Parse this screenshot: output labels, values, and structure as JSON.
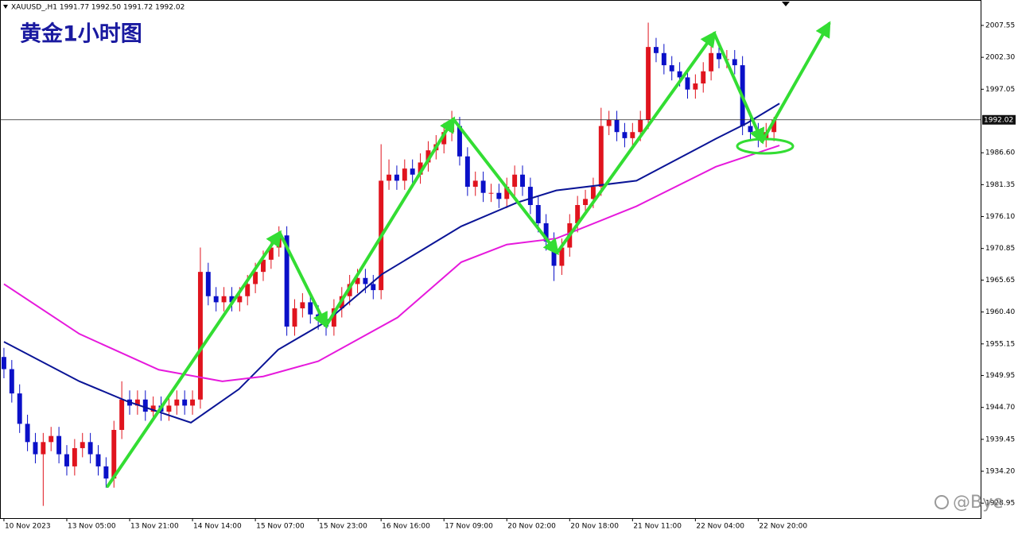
{
  "header": "XAUUSD_,H1  1991.77 1992.50 1991.72 1992.02",
  "watermark": "@Bye",
  "chart_data": {
    "type": "candlestick",
    "title": "黄金1小时图",
    "up_color": "#e0141e",
    "down_color": "#0a10c8",
    "open": [
      1953,
      1951,
      1947,
      1942,
      1939,
      1937,
      1939,
      1940,
      1937,
      1935,
      1938,
      1939,
      1937,
      1935,
      1933,
      1941,
      1946,
      1945,
      1946,
      1944,
      1945,
      1944,
      1945,
      1946,
      1945,
      1946,
      1967,
      1963,
      1962,
      1963,
      1962,
      1963,
      1965,
      1967,
      1969,
      1971,
      1973,
      1958,
      1961,
      1962,
      1960,
      1959,
      1958,
      1961,
      1963,
      1965,
      1966,
      1965,
      1964,
      1982,
      1983,
      1982,
      1984,
      1983,
      1985,
      1987,
      1988,
      1990,
      1991,
      1986,
      1981,
      1982,
      1980,
      1980,
      1979,
      1981,
      1983,
      1981,
      1978,
      1975,
      1972,
      1968,
      1971,
      1975,
      1978,
      1979,
      1981,
      1991,
      1992,
      1990,
      1989,
      1990,
      1992,
      2004,
      2003,
      2001,
      2000,
      1999,
      1997,
      1998,
      2000,
      2003,
      2002,
      2002,
      2001,
      1991,
      1990,
      1989,
      1990
    ],
    "high": [
      1954.5,
      1952.5,
      1948.5,
      1943.5,
      1940.5,
      1940.5,
      1941.5,
      1941.5,
      1938.5,
      1939.5,
      1940.5,
      1940.5,
      1938.5,
      1936.5,
      1942.5,
      1949,
      1947.5,
      1947.5,
      1947.5,
      1946.5,
      1946.5,
      1946.5,
      1947.5,
      1947.5,
      1947.5,
      1971,
      1968.5,
      1964.5,
      1964.5,
      1964.5,
      1964.5,
      1966.5,
      1968.5,
      1970.5,
      1972.5,
      1974.5,
      1974.5,
      1962.5,
      1963.5,
      1963.5,
      1961.5,
      1960.5,
      1962.5,
      1964.5,
      1966.5,
      1967.5,
      1967.5,
      1966.5,
      1988,
      1985.5,
      1984.5,
      1985.5,
      1985.5,
      1986.5,
      1988.5,
      1989.5,
      1991.5,
      1993.5,
      1992.5,
      1987.5,
      1983.5,
      1983.5,
      1981.5,
      1981.5,
      1982.5,
      1984.5,
      1984.5,
      1982.5,
      1979.5,
      1976.5,
      1973.5,
      1972.5,
      1976.5,
      1979.5,
      1980.5,
      1982.5,
      1994,
      1993.5,
      1993.5,
      1991.5,
      1991.5,
      1993.5,
      2008,
      2005.5,
      2004.5,
      2002.5,
      2001.5,
      2000.5,
      1999.5,
      2001.5,
      2005.5,
      2004.5,
      2003.5,
      2003.5,
      2002.5,
      1992.5,
      1991.5,
      1991.5,
      1992.5
    ],
    "low": [
      1949.5,
      1945.5,
      1940.5,
      1937.5,
      1935.5,
      1928.5,
      1937.5,
      1935.5,
      1933.5,
      1933.5,
      1936.5,
      1935.5,
      1933.5,
      1931.5,
      1931.5,
      1939.5,
      1943.5,
      1943.5,
      1942.5,
      1942.5,
      1942.5,
      1942.5,
      1943.5,
      1943.5,
      1943.5,
      1944.5,
      1961.5,
      1960.5,
      1960.5,
      1960.5,
      1960.5,
      1961.5,
      1963.5,
      1965.5,
      1967.5,
      1969.5,
      1956.5,
      1956.5,
      1959.5,
      1958.5,
      1957.5,
      1956.5,
      1956.5,
      1959.5,
      1961.5,
      1963.5,
      1963.5,
      1962.5,
      1962.5,
      1980.5,
      1980.5,
      1980.5,
      1981.5,
      1981.5,
      1983.5,
      1985.5,
      1986.5,
      1988.5,
      1984.5,
      1979.5,
      1979.5,
      1978.5,
      1978.5,
      1977.5,
      1977.5,
      1979.5,
      1979.5,
      1976.5,
      1973.5,
      1970.5,
      1965.5,
      1966.5,
      1969.5,
      1973.5,
      1976.5,
      1977.5,
      1979.5,
      1989.5,
      1988.5,
      1987.5,
      1987.5,
      1988.5,
      1990.5,
      2001.5,
      1999.5,
      1998.5,
      1997.5,
      1995.5,
      1995.5,
      1996.5,
      1998.5,
      2000.5,
      2000.5,
      1999.5,
      1989.5,
      1988.5,
      1987.5,
      1987.5,
      1988.5
    ],
    "close": [
      1951,
      1947,
      1942,
      1939,
      1937,
      1939,
      1940,
      1937,
      1935,
      1938,
      1939,
      1937,
      1935,
      1933,
      1941,
      1946,
      1945,
      1946,
      1944,
      1945,
      1944,
      1945,
      1946,
      1945,
      1946,
      1967,
      1963,
      1962,
      1963,
      1962,
      1963,
      1965,
      1967,
      1969,
      1971,
      1973,
      1958,
      1961,
      1962,
      1960,
      1959,
      1958,
      1961,
      1963,
      1965,
      1966,
      1965,
      1964,
      1982,
      1983,
      1982,
      1984,
      1983,
      1985,
      1987,
      1988,
      1990,
      1991,
      1986,
      1981,
      1982,
      1980,
      1980,
      1979,
      1981,
      1983,
      1981,
      1978,
      1975,
      1972,
      1968,
      1971,
      1975,
      1978,
      1979,
      1981,
      1991,
      1992,
      1990,
      1989,
      1990,
      1992,
      2004,
      2003,
      2001,
      2000,
      1999,
      1997,
      1998,
      2000,
      2003,
      2002,
      2002,
      2001,
      1991,
      1990,
      1989,
      1990,
      1992.02
    ],
    "moving_averages": [
      {
        "color": "#0a1496",
        "x": [
          0,
          9.6,
          15.7,
          23.8,
          29.9,
          34.9,
          41,
          48.1,
          58.2,
          65.3,
          70.3,
          80.5,
          90.6,
          94.6,
          98.7
        ],
        "values": [
          1955.5,
          1949,
          1945.7,
          1942.2,
          1947.7,
          1954.2,
          1958.8,
          1966.6,
          1974.5,
          1978.4,
          1980.4,
          1982,
          1988.9,
          1991.5,
          1994.7
        ]
      },
      {
        "color": "#e619dc",
        "x": [
          0,
          9.6,
          19.7,
          27.8,
          33,
          40,
          50.1,
          58.2,
          64,
          70.3,
          80.5,
          90.6,
          98.7
        ],
        "values": [
          1965,
          1956.8,
          1950.9,
          1949,
          1949.8,
          1952.3,
          1959.5,
          1968.6,
          1971.5,
          1972.5,
          1977.8,
          1984.3,
          1987.8
        ]
      }
    ],
    "arrows": {
      "color": "#33dd33",
      "x": [
        13.2,
        35.1,
        41,
        57.2,
        70.4,
        90.4,
        96.5,
        105
      ],
      "values": [
        1931.73,
        1973.43,
        1958.14,
        1992.13,
        1970.16,
        2006.24,
        1988.46,
        2007.81
      ]
    },
    "current_price": 1992.02,
    "xlim": [
      -0.5,
      124.3
    ],
    "xticks": [
      {
        "value": 0,
        "label": "10 Nov 2023"
      },
      {
        "value": 8,
        "label": "13 Nov 05:00"
      },
      {
        "value": 16,
        "label": "13 Nov 21:00"
      },
      {
        "value": 24,
        "label": "14 Nov 14:00"
      },
      {
        "value": 32,
        "label": "15 Nov 07:00"
      },
      {
        "value": 40,
        "label": "15 Nov 23:00"
      },
      {
        "value": 48,
        "label": "16 Nov 16:00"
      },
      {
        "value": 56,
        "label": "17 Nov 09:00"
      },
      {
        "value": 64,
        "label": "20 Nov 02:00"
      },
      {
        "value": 72,
        "label": "20 Nov 18:00"
      },
      {
        "value": 80,
        "label": "21 Nov 11:00"
      },
      {
        "value": 88,
        "label": "22 Nov 04:00"
      },
      {
        "value": 96,
        "label": "22 Nov 20:00"
      }
    ],
    "ylim": [
      1926.49,
      2011.47
    ],
    "yticks": [
      1928.95,
      {
        "value": 1934.2,
        "label": "1934.20"
      },
      1939.45,
      {
        "value": 1944.7,
        "label": "1944.70"
      },
      1949.95,
      1955.15,
      {
        "value": 1960.4,
        "label": "1960.40"
      },
      1965.65,
      1970.85,
      {
        "value": 1976.1,
        "label": "1976.10"
      },
      1981.35,
      {
        "value": 1986.6,
        "label": "1986.60"
      },
      1997.05,
      {
        "value": 2002.3,
        "label": "2002.30"
      },
      2007.55
    ]
  }
}
